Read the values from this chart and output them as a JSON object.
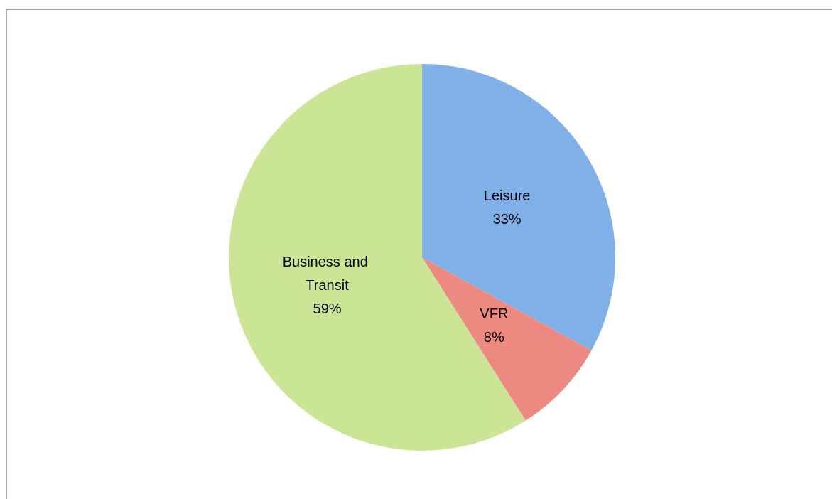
{
  "chart_data": {
    "type": "pie",
    "categories": [
      "Leisure",
      "VFR",
      "Business and Transit"
    ],
    "values": [
      33,
      8,
      59
    ],
    "value_labels": [
      "33%",
      "8%",
      "59%"
    ],
    "colors": [
      "#7fb0e8",
      "#ec8a82",
      "#cbe495"
    ],
    "legend": false
  }
}
